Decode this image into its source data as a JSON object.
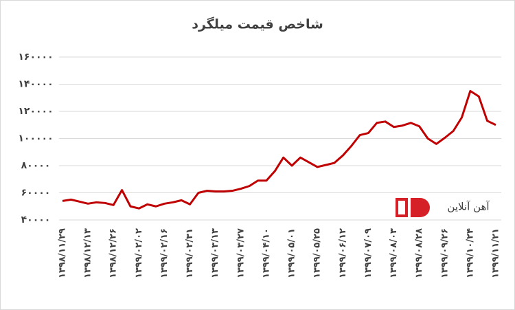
{
  "chart_data": {
    "type": "line",
    "title": "شاخص قیمت میلگرد",
    "watermark": "آهن آنلاین",
    "categories": [
      "۱۳۹۸/۱۱/۲۹",
      null,
      null,
      "۱۳۹۸/۱۲/۱۳",
      null,
      null,
      "۱۳۹۸/۱۲/۲۶",
      null,
      null,
      "۱۳۹۹/۰۲/۰۲",
      null,
      null,
      "۱۳۹۹/۰۲/۱۶",
      null,
      null,
      "۱۳۹۹/۰۲/۳۱",
      null,
      null,
      "۱۳۹۹/۰۳/۱۳",
      null,
      null,
      "۱۳۹۹/۰۳/۲۷",
      null,
      null,
      "۱۳۹۹/۰۴/۱۰",
      null,
      null,
      "۱۳۹۹/۰۵/۰۱",
      null,
      null,
      "۱۳۹۹/۰۵/۲۵",
      null,
      null,
      "۱۳۹۹/۰۶/۱۲",
      null,
      null,
      "۱۳۹۹/۰۷/۰۹",
      null,
      null,
      "۱۳۹۹/۰۸/۰۳",
      null,
      null,
      "۱۳۹۹/۰۸/۲۸",
      null,
      null,
      "۱۳۹۹/۰۹/۲۶",
      null,
      null,
      "۱۳۹۹/۱۰/۲۴",
      null,
      null,
      "۱۳۹۹/۱۱/۲۱"
    ],
    "values": [
      54000,
      55000,
      53500,
      52000,
      53000,
      52500,
      51000,
      62000,
      50000,
      48500,
      51500,
      50000,
      52000,
      53000,
      54500,
      51500,
      60000,
      61500,
      61000,
      61000,
      61500,
      63000,
      65000,
      69000,
      69000,
      76000,
      86000,
      80000,
      86000,
      82500,
      79000,
      80500,
      82000,
      87500,
      94500,
      102500,
      104000,
      111500,
      112500,
      108500,
      109500,
      111500,
      109000,
      100000,
      96000,
      100500,
      105500,
      115500,
      135000,
      131000,
      113000,
      110000
    ],
    "color": "#c00000",
    "ylim": [
      40000,
      160000
    ],
    "yticks": [
      {
        "value": 40000,
        "label": "۴۰۰۰۰"
      },
      {
        "value": 60000,
        "label": "۶۰۰۰۰"
      },
      {
        "value": 80000,
        "label": "۸۰۰۰۰"
      },
      {
        "value": 100000,
        "label": "۱۰۰۰۰۰"
      },
      {
        "value": 120000,
        "label": "۱۲۰۰۰۰"
      },
      {
        "value": 140000,
        "label": "۱۴۰۰۰۰"
      },
      {
        "value": 160000,
        "label": "۱۶۰۰۰۰"
      }
    ],
    "grid": true
  }
}
